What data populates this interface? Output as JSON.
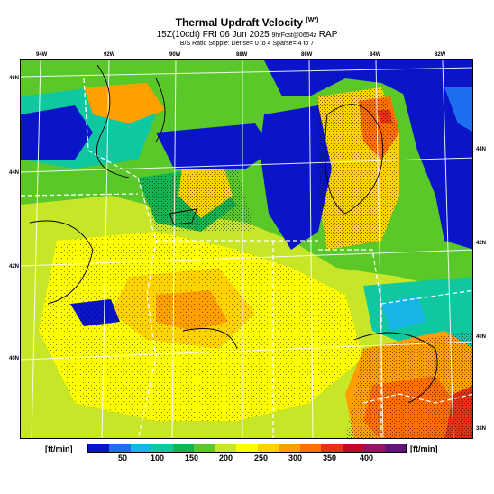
{
  "header": {
    "title": "Thermal Updraft Velocity",
    "title_unit": "(W*)",
    "subtitle_main": "15Z(10cdt) FRI 06 Jun 2025",
    "subtitle_small": "9hrFcst@0654z",
    "subtitle_model": "RAP",
    "subtitle_note": "B/S Ratio Stipple: Dense= 0 to 4 Sparse= 4 to 7"
  },
  "map": {
    "lon_labels": [
      "94W",
      "92W",
      "90W",
      "88W",
      "86W",
      "84W",
      "82W"
    ],
    "lat_labels_left": [
      "46N",
      "44N",
      "42N",
      "40N"
    ],
    "lat_labels_right": [
      "44N",
      "42N",
      "40N",
      "38N"
    ]
  },
  "legend": {
    "unit_left": "[ft/min]",
    "unit_right": "[ft/min]",
    "ticks": [
      "50",
      "100",
      "150",
      "200",
      "250",
      "300",
      "350",
      "400"
    ],
    "colors": [
      "#0a14c8",
      "#1e6ef0",
      "#19b4e6",
      "#0fc8a0",
      "#14b450",
      "#5ac828",
      "#c8e628",
      "#ffff00",
      "#ffd200",
      "#ffa000",
      "#ff6e00",
      "#e63214",
      "#be0a28",
      "#961464",
      "#641478"
    ]
  }
}
